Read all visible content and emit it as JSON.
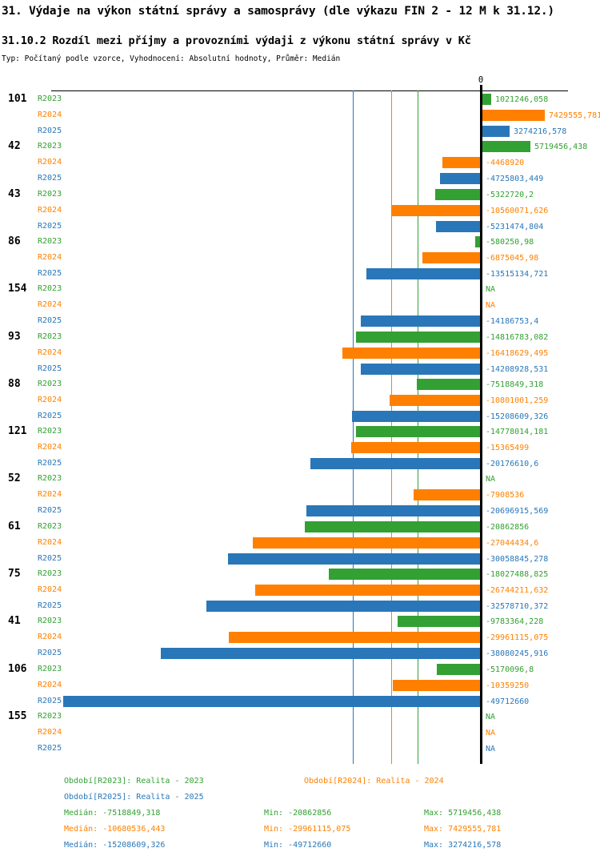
{
  "title": "31. Výdaje na výkon státní správy a samosprávy (dle výkazu FIN 2 - 12 M k 31.12.)",
  "subtitle": "31.10.2 Rozdíl mezi příjmy a provozními výdaji z výkonu státní správy v Kč",
  "meta_line": "Typ: Počítaný podle vzorce, Vyhodnocení: Absolutní hodnoty, Průměr: Medián",
  "colors": {
    "R2023": "#33A033",
    "R2024": "#FF8000",
    "R2025": "#2977B8",
    "axis": "#000000"
  },
  "axis": {
    "zero_label": "0"
  },
  "legend": {
    "r2023": "Období[R2023]: Realita - 2023",
    "r2024": "Období[R2024]: Realita - 2024",
    "r2025": "Období[R2025]: Realita - 2025"
  },
  "stats": [
    {
      "series": "R2023",
      "median": "Medián: -7518849,318",
      "min": "Min: -20862856",
      "max": "Max: 5719456,438"
    },
    {
      "series": "R2024",
      "median": "Medián: -10680536,443",
      "min": "Min: -29961115,075",
      "max": "Max: 7429555,781"
    },
    {
      "series": "R2025",
      "median": "Medián: -15208609,326",
      "min": "Min: -49712660",
      "max": "Max: 3274216,578"
    }
  ],
  "chart_data": {
    "type": "bar",
    "orientation": "horizontal",
    "title": "31.10.2 Rozdíl mezi příjmy a provozními výdaji z výkonu státní správy v Kč",
    "series_names": [
      "R2023",
      "R2024",
      "R2025"
    ],
    "xlim": [
      -50300000,
      8100000
    ],
    "grid": "median-guides",
    "legend_position": "bottom",
    "medians": {
      "R2023": -7518849.318,
      "R2024": -10680536.443,
      "R2025": -15208609.326
    },
    "mins": {
      "R2023": -20862856,
      "R2024": -29961115.075,
      "R2025": -49712660
    },
    "maxes": {
      "R2023": 5719456.438,
      "R2024": 7429555.781,
      "R2025": 3274216.578
    },
    "rows": [
      {
        "id": "101",
        "values": [
          1021246.058,
          7429555.781,
          3274216.578
        ],
        "labels": [
          "1021246,058",
          "7429555,781",
          "3274216,578"
        ]
      },
      {
        "id": "42",
        "values": [
          5719456.438,
          -4468920,
          -4725803.449
        ],
        "labels": [
          "5719456,438",
          "-4468920",
          "-4725803,449"
        ]
      },
      {
        "id": "43",
        "values": [
          -5322720.2,
          -10560071.626,
          -5231474.804
        ],
        "labels": [
          "-5322720,2",
          "-10560071,626",
          "-5231474,804"
        ]
      },
      {
        "id": "86",
        "values": [
          -580250.98,
          -6875045.98,
          -13515134.721
        ],
        "labels": [
          "-580250,98",
          "-6875045,98",
          "-13515134,721"
        ]
      },
      {
        "id": "154",
        "values": [
          null,
          null,
          -14186753.4
        ],
        "labels": [
          "NA",
          "NA",
          "-14186753,4"
        ]
      },
      {
        "id": "93",
        "values": [
          -14816783.082,
          -16418629.495,
          -14208928.531
        ],
        "labels": [
          "-14816783,082",
          "-16418629,495",
          "-14208928,531"
        ]
      },
      {
        "id": "88",
        "values": [
          -7518849.318,
          -10801001.259,
          -15208609.326
        ],
        "labels": [
          "-7518849,318",
          "-10801001,259",
          "-15208609,326"
        ]
      },
      {
        "id": "121",
        "values": [
          -14778014.181,
          -15365499,
          -20176610.6
        ],
        "labels": [
          "-14778014,181",
          "-15365499",
          "-20176610,6"
        ]
      },
      {
        "id": "52",
        "values": [
          null,
          -7908536,
          -20696915.569
        ],
        "labels": [
          "NA",
          "-7908536",
          "-20696915,569"
        ]
      },
      {
        "id": "61",
        "values": [
          -20862856,
          -27044434.6,
          -30058845.278
        ],
        "labels": [
          "-20862856",
          "-27044434,6",
          "-30058845,278"
        ]
      },
      {
        "id": "75",
        "values": [
          -18027488.825,
          -26744211.632,
          -32578710.372
        ],
        "labels": [
          "-18027488,825",
          "-26744211,632",
          "-32578710,372"
        ]
      },
      {
        "id": "41",
        "values": [
          -9783364.228,
          -29961115.075,
          -38080245.916
        ],
        "labels": [
          "-9783364,228",
          "-29961115,075",
          "-38080245,916"
        ]
      },
      {
        "id": "106",
        "values": [
          -5170096.8,
          -10359250,
          -49712660
        ],
        "labels": [
          "-5170096,8",
          "-10359250",
          "-49712660"
        ]
      },
      {
        "id": "155",
        "values": [
          null,
          null,
          null
        ],
        "labels": [
          "NA",
          "NA",
          "NA"
        ]
      }
    ]
  }
}
